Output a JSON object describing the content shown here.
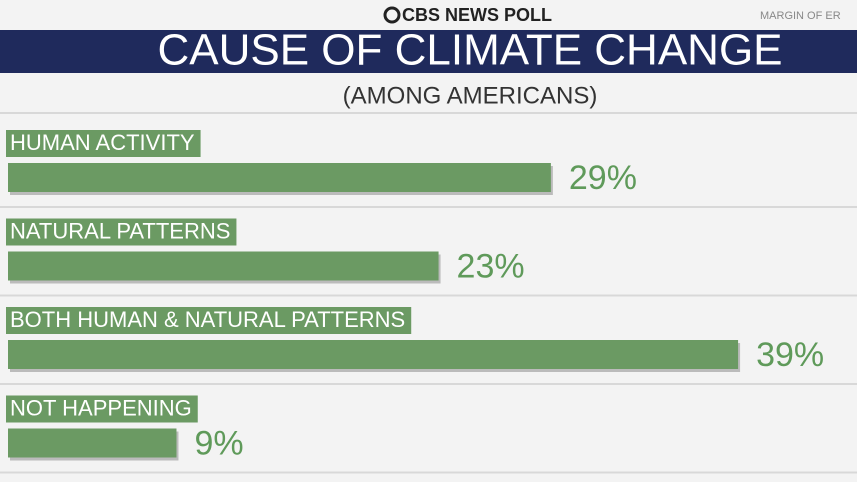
{
  "chart_data": {
    "type": "bar",
    "orientation": "horizontal",
    "header": "CBS NEWS POLL",
    "margin_note": "MARGIN OF ER",
    "title": "CAUSE OF CLIMATE CHANGE",
    "subtitle": "(AMONG AMERICANS)",
    "categories": [
      "HUMAN ACTIVITY",
      "NATURAL PATTERNS",
      "BOTH HUMAN & NATURAL PATTERNS",
      "NOT HAPPENING"
    ],
    "values": [
      29,
      23,
      39,
      9
    ],
    "value_labels": [
      "29%",
      "23%",
      "39%",
      "9%"
    ],
    "color": "#6b9a63"
  }
}
